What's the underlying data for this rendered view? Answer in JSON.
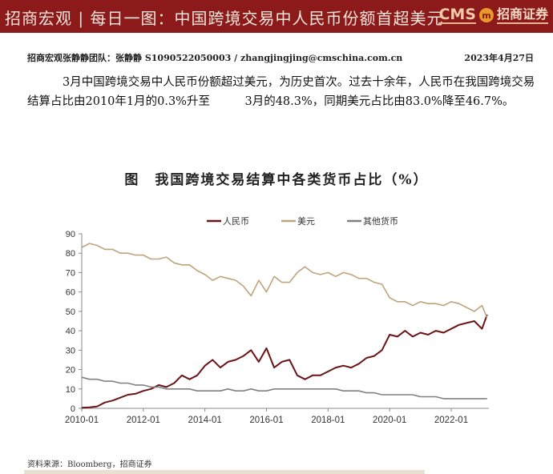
{
  "header": {
    "title": "招商宏观 | 每日一图：中国跨境交易中人民币份额首超美元",
    "logo_text": "CMS",
    "logo_badge": "m",
    "logo_cn": "招商证券"
  },
  "byline": {
    "author": "招商宏观张静静团队：张静静 S1090522050003 / zhangjingjing@cmschina.com.cn",
    "date": "2023年4月27日"
  },
  "paragraph": "3月中国跨境交易中人民币份额超过美元，为历史首次。过去十余年，人民币在我国跨境交易结算占比由2010年1月的0.3%升至　　　3月的48.3%，同期美元占比由83.0%降至46.7%。",
  "source": "资料来源：Bloomberg，招商证券",
  "colors": {
    "rmb": "#6b1418",
    "usd": "#bfa47c",
    "other": "#808080",
    "band": "#8c1a1a"
  },
  "chart_data": {
    "type": "line",
    "title": "图　我国跨境交易结算中各类货币占比（%）",
    "xlabel": "",
    "ylabel": "",
    "ylim": [
      0,
      90
    ],
    "yticks": [
      "0",
      "10",
      "20",
      "30",
      "40",
      "50",
      "60",
      "70",
      "80",
      "90"
    ],
    "xticks": [
      "2010-01",
      "2012-01",
      "2014-01",
      "2016-01",
      "2018-01",
      "2020-01",
      "2022-01"
    ],
    "x_start": "2010-01",
    "x_step_months": 3,
    "x_end": "2023-03",
    "legend_position": "top-center",
    "grid": false,
    "series": [
      {
        "name": "人民币",
        "color": "#6b1418",
        "values": [
          0.3,
          0.5,
          1,
          3,
          4,
          5.5,
          7,
          7.5,
          9,
          10,
          12,
          11,
          13,
          17,
          15,
          17,
          22,
          25,
          21,
          24,
          25,
          27,
          30,
          24,
          31,
          21,
          24,
          25,
          17,
          15,
          17,
          17,
          19,
          21,
          22,
          21,
          23,
          26,
          27,
          30,
          38,
          37,
          40,
          37,
          39,
          38,
          40,
          39,
          41,
          43,
          44,
          45,
          41,
          48.3
        ]
      },
      {
        "name": "美元",
        "color": "#bfa47c",
        "values": [
          83,
          85,
          84,
          82,
          82,
          80,
          80,
          79,
          79,
          77,
          77,
          78,
          75,
          74,
          74,
          71,
          69,
          66,
          68,
          67,
          66,
          63,
          58,
          66,
          60,
          68,
          65,
          65,
          70,
          73,
          70,
          69,
          70,
          68,
          70,
          69,
          67,
          67,
          65,
          64,
          57,
          55,
          55,
          53,
          55,
          54,
          54,
          53,
          55,
          54,
          52,
          50,
          53,
          46.7
        ]
      },
      {
        "name": "其他货币",
        "color": "#808080",
        "values": [
          16,
          15,
          15,
          14,
          14,
          13,
          13,
          12,
          12,
          11,
          11,
          10,
          10,
          10,
          10,
          9,
          9,
          9,
          9,
          10,
          9,
          9,
          10,
          9,
          9,
          10,
          10,
          10,
          10,
          10,
          10,
          10,
          10,
          10,
          9,
          9,
          9,
          8,
          8,
          7,
          7,
          7,
          7,
          7,
          6,
          6,
          6,
          5,
          5,
          5,
          5,
          5,
          5,
          5
        ]
      }
    ]
  }
}
